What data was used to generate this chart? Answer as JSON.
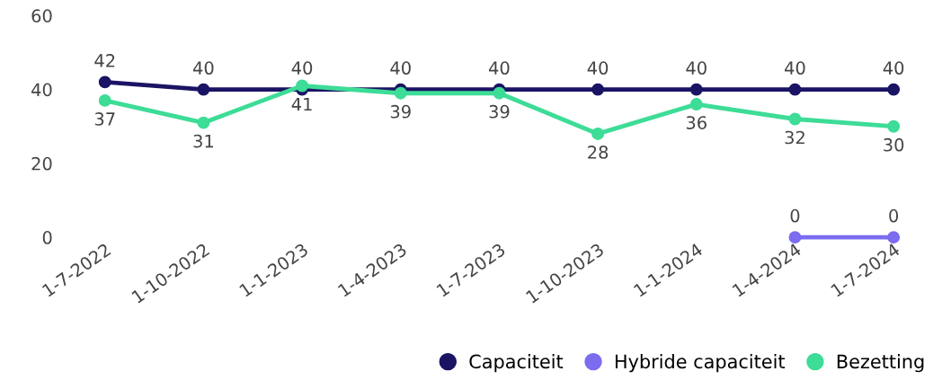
{
  "chart_data": {
    "type": "line",
    "categories": [
      "1-7-2022",
      "1-10-2022",
      "1-1-2023",
      "1-4-2023",
      "1-7-2023",
      "1-10-2023",
      "1-1-2024",
      "1-4-2024",
      "1-7-2024"
    ],
    "series": [
      {
        "name": "Capaciteit",
        "color": "#1b1464",
        "values": [
          42,
          40,
          40,
          40,
          40,
          40,
          40,
          40,
          40
        ]
      },
      {
        "name": "Hybride capaciteit",
        "color": "#7b6cf0",
        "values": [
          null,
          null,
          null,
          null,
          null,
          null,
          null,
          0,
          0
        ]
      },
      {
        "name": "Bezetting",
        "color": "#3ddc97",
        "values": [
          37,
          31,
          41,
          39,
          39,
          28,
          36,
          32,
          30
        ]
      }
    ],
    "ylim": [
      0,
      60
    ],
    "yticks": [
      0,
      20,
      40,
      60
    ],
    "data_labels": true,
    "legend": "bottom right",
    "marker": "circle",
    "line_style": "solid",
    "grid": false
  }
}
